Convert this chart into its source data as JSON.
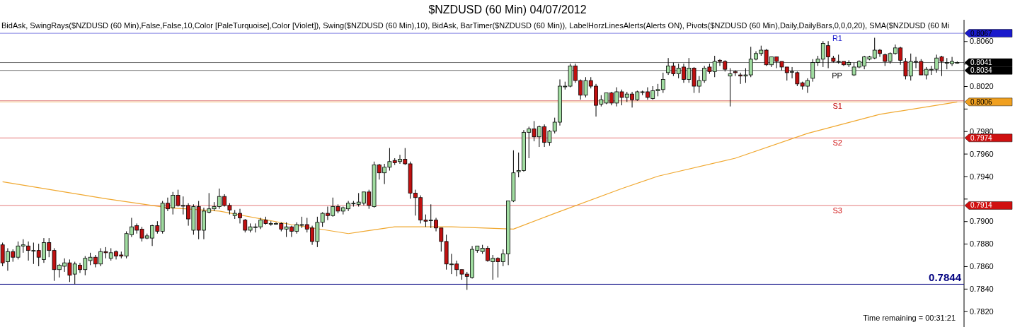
{
  "chart_data": {
    "type": "candlestick",
    "title": "$NZDUSD (60 Min)  04/07/2012",
    "subtitle": "BidAsk, SwingRays($NZDUSD (60 Min),False,False,10,Color [PaleTurquoise],Color [Violet]), Swing($NZDUSD (60 Min),10), BidAsk, BarTimer($NZDUSD (60 Min)), LabelHorzLinesAlerts(Alerts ON), Pivots($NZDUSD (60 Min),Daily,DailyBars,0,0,0,20), SMA($NZDUSD (60 Mi",
    "categories": [
      null,
      null,
      null,
      null,
      null,
      null,
      null,
      null,
      null,
      null,
      null,
      null,
      null,
      null,
      null,
      null,
      null,
      null,
      null,
      null,
      null,
      null,
      null,
      null,
      null,
      null,
      null,
      null,
      null,
      null,
      null,
      null,
      null,
      null,
      null,
      null,
      null,
      null,
      null,
      null,
      null,
      null,
      null,
      null,
      null,
      null,
      null,
      null,
      null,
      null,
      null,
      null,
      null,
      null,
      null,
      null,
      null,
      null,
      null,
      null,
      null,
      null,
      null,
      null,
      null,
      null,
      null,
      null,
      null,
      null,
      null,
      null,
      null,
      null,
      null,
      null,
      null,
      null,
      null,
      null,
      null,
      null,
      null,
      null,
      null,
      null,
      null,
      null,
      null,
      null,
      null,
      null,
      null,
      null,
      null,
      null,
      null,
      null,
      null,
      null,
      null,
      null,
      null,
      null,
      null,
      null,
      null,
      null,
      null,
      null,
      null,
      null,
      null,
      null,
      null,
      null,
      null,
      null,
      null,
      null,
      null,
      null,
      null,
      null,
      null,
      null,
      null,
      null,
      null,
      null,
      null,
      null,
      null,
      null,
      null,
      null,
      null,
      null,
      null,
      null,
      null,
      null,
      null,
      null,
      null,
      null,
      null,
      null,
      null,
      null,
      null,
      null,
      null,
      null,
      null,
      null,
      null,
      null,
      null,
      null,
      null,
      null,
      null,
      null,
      null,
      null,
      null,
      null,
      null,
      null,
      null,
      null,
      null,
      null,
      null,
      null,
      null,
      null,
      null,
      null,
      null,
      null,
      null,
      null,
      null,
      null
    ],
    "ohlc": [
      [
        0.7879,
        0.7881,
        0.786,
        0.7863
      ],
      [
        0.7864,
        0.7876,
        0.7856,
        0.7873
      ],
      [
        0.7873,
        0.7875,
        0.7864,
        0.7868
      ],
      [
        0.7868,
        0.7882,
        0.7866,
        0.7878
      ],
      [
        0.7878,
        0.7884,
        0.7872,
        0.7879
      ],
      [
        0.7878,
        0.7882,
        0.7865,
        0.7874
      ],
      [
        0.7874,
        0.7881,
        0.7862,
        0.7874
      ],
      [
        0.7874,
        0.788,
        0.786,
        0.7868
      ],
      [
        0.7866,
        0.7885,
        0.7863,
        0.7881
      ],
      [
        0.7881,
        0.7885,
        0.7868,
        0.7874
      ],
      [
        0.7874,
        0.7876,
        0.7847,
        0.7857
      ],
      [
        0.7857,
        0.7862,
        0.785,
        0.7861
      ],
      [
        0.786,
        0.7867,
        0.7855,
        0.7863
      ],
      [
        0.7863,
        0.7866,
        0.7846,
        0.7852
      ],
      [
        0.7853,
        0.7864,
        0.7844,
        0.7862
      ],
      [
        0.7861,
        0.7863,
        0.7854,
        0.7857
      ],
      [
        0.7857,
        0.7869,
        0.7852,
        0.7867
      ],
      [
        0.7865,
        0.7872,
        0.7861,
        0.7868
      ],
      [
        0.7868,
        0.787,
        0.7859,
        0.7862
      ],
      [
        0.7862,
        0.7876,
        0.786,
        0.7873
      ],
      [
        0.7873,
        0.7877,
        0.7867,
        0.7872
      ],
      [
        0.7867,
        0.7876,
        0.7865,
        0.7872
      ],
      [
        0.7873,
        0.7874,
        0.7866,
        0.7869
      ],
      [
        0.787,
        0.7873,
        0.7867,
        0.7869
      ],
      [
        0.7869,
        0.7891,
        0.7867,
        0.7889
      ],
      [
        0.7888,
        0.7903,
        0.7886,
        0.7895
      ],
      [
        0.7896,
        0.7898,
        0.7889,
        0.7892
      ],
      [
        0.7893,
        0.7895,
        0.7882,
        0.7885
      ],
      [
        0.7885,
        0.7889,
        0.7884,
        0.7887
      ],
      [
        0.7885,
        0.7897,
        0.7878,
        0.7896
      ],
      [
        0.7896,
        0.79,
        0.7889,
        0.7891
      ],
      [
        0.7891,
        0.7918,
        0.7889,
        0.7916
      ],
      [
        0.7916,
        0.7921,
        0.7909,
        0.7911
      ],
      [
        0.7912,
        0.7926,
        0.7906,
        0.7923
      ],
      [
        0.7923,
        0.7928,
        0.7913,
        0.7914
      ],
      [
        0.7914,
        0.7922,
        0.7906,
        0.7914
      ],
      [
        0.7914,
        0.7916,
        0.7896,
        0.7902
      ],
      [
        0.7892,
        0.7915,
        0.7888,
        0.7913
      ],
      [
        0.7913,
        0.7918,
        0.7884,
        0.7892
      ],
      [
        0.7892,
        0.7912,
        0.7884,
        0.7909
      ],
      [
        0.7908,
        0.7925,
        0.7907,
        0.7911
      ],
      [
        0.7911,
        0.7917,
        0.7909,
        0.7913
      ],
      [
        0.7913,
        0.7929,
        0.7911,
        0.7922
      ],
      [
        0.7922,
        0.7924,
        0.7913,
        0.7914
      ],
      [
        0.7914,
        0.7916,
        0.7906,
        0.791
      ],
      [
        0.7905,
        0.791,
        0.7902,
        0.7907
      ],
      [
        0.7907,
        0.7911,
        0.7898,
        0.7903
      ],
      [
        0.7901,
        0.7902,
        0.789,
        0.7892
      ],
      [
        0.7892,
        0.7898,
        0.789,
        0.7895
      ],
      [
        0.7895,
        0.7898,
        0.789,
        0.7895
      ],
      [
        0.7895,
        0.7903,
        0.7893,
        0.7901
      ],
      [
        0.7901,
        0.7904,
        0.7897,
        0.7898
      ],
      [
        0.7898,
        0.79,
        0.7896,
        0.7898
      ],
      [
        0.7898,
        0.7899,
        0.7897,
        0.7898
      ],
      [
        0.7898,
        0.7899,
        0.7891,
        0.7893
      ],
      [
        0.7893,
        0.7899,
        0.7886,
        0.7895
      ],
      [
        0.7895,
        0.7896,
        0.7886,
        0.7891
      ],
      [
        0.7891,
        0.7899,
        0.7889,
        0.7897
      ],
      [
        0.7897,
        0.7904,
        0.7894,
        0.7897
      ],
      [
        0.7897,
        0.7903,
        0.789,
        0.7893
      ],
      [
        0.7894,
        0.7896,
        0.7879,
        0.7882
      ],
      [
        0.7882,
        0.7904,
        0.7877,
        0.7899
      ],
      [
        0.7899,
        0.7908,
        0.7895,
        0.7907
      ],
      [
        0.7907,
        0.7913,
        0.7901,
        0.7905
      ],
      [
        0.7905,
        0.7921,
        0.7904,
        0.7913
      ],
      [
        0.7913,
        0.7915,
        0.7907,
        0.7909
      ],
      [
        0.7909,
        0.7913,
        0.7906,
        0.7912
      ],
      [
        0.7911,
        0.7918,
        0.7909,
        0.7916
      ],
      [
        0.7916,
        0.7918,
        0.7913,
        0.7916
      ],
      [
        0.7915,
        0.7925,
        0.7913,
        0.7917
      ],
      [
        0.7916,
        0.7926,
        0.7914,
        0.7926
      ],
      [
        0.7926,
        0.7928,
        0.7911,
        0.7914
      ],
      [
        0.7913,
        0.7953,
        0.7912,
        0.795
      ],
      [
        0.795,
        0.7951,
        0.7937,
        0.7943
      ],
      [
        0.7943,
        0.7951,
        0.7933,
        0.7948
      ],
      [
        0.7948,
        0.7965,
        0.7945,
        0.7953
      ],
      [
        0.7954,
        0.7956,
        0.795,
        0.7952
      ],
      [
        0.7953,
        0.7959,
        0.7951,
        0.7955
      ],
      [
        0.7955,
        0.7965,
        0.795,
        0.7951
      ],
      [
        0.7951,
        0.7953,
        0.792,
        0.7925
      ],
      [
        0.7925,
        0.7928,
        0.7905,
        0.7921
      ],
      [
        0.7921,
        0.7923,
        0.7898,
        0.7901
      ],
      [
        0.7901,
        0.7906,
        0.7895,
        0.79
      ],
      [
        0.7901,
        0.7915,
        0.7894,
        0.7901
      ],
      [
        0.7901,
        0.7903,
        0.7891,
        0.7894
      ],
      [
        0.7894,
        0.7894,
        0.7873,
        0.7882
      ],
      [
        0.7882,
        0.7888,
        0.7857,
        0.7862
      ],
      [
        0.7862,
        0.7871,
        0.7853,
        0.7862
      ],
      [
        0.7862,
        0.7865,
        0.7851,
        0.7857
      ],
      [
        0.7857,
        0.7857,
        0.7848,
        0.7853
      ],
      [
        0.7853,
        0.7855,
        0.7839,
        0.7851
      ],
      [
        0.785,
        0.7878,
        0.7849,
        0.7875
      ],
      [
        0.7874,
        0.7878,
        0.7872,
        0.7878
      ],
      [
        0.7873,
        0.7879,
        0.7871,
        0.7876
      ],
      [
        0.7876,
        0.7878,
        0.7864,
        0.7865
      ],
      [
        0.7864,
        0.787,
        0.7848,
        0.7867
      ],
      [
        0.7867,
        0.7868,
        0.785,
        0.7864
      ],
      [
        0.7864,
        0.7875,
        0.786,
        0.7871
      ],
      [
        0.7871,
        0.7918,
        0.7861,
        0.7918
      ],
      [
        0.7918,
        0.7963,
        0.7917,
        0.7943
      ],
      [
        0.7944,
        0.7961,
        0.7939,
        0.7945
      ],
      [
        0.7945,
        0.7981,
        0.7944,
        0.7979
      ],
      [
        0.7979,
        0.7984,
        0.7956,
        0.7982
      ],
      [
        0.7982,
        0.7989,
        0.7971,
        0.7975
      ],
      [
        0.7975,
        0.7985,
        0.7966,
        0.7984
      ],
      [
        0.7984,
        0.7986,
        0.7966,
        0.797
      ],
      [
        0.797,
        0.7981,
        0.7967,
        0.798
      ],
      [
        0.798,
        0.7992,
        0.7978,
        0.7988
      ],
      [
        0.7988,
        0.8026,
        0.7985,
        0.802
      ],
      [
        0.802,
        0.8024,
        0.8017,
        0.802
      ],
      [
        0.802,
        0.804,
        0.8019,
        0.8038
      ],
      [
        0.8038,
        0.804,
        0.8023,
        0.8025
      ],
      [
        0.8025,
        0.8026,
        0.8008,
        0.8012
      ],
      [
        0.8012,
        0.8028,
        0.801,
        0.8025
      ],
      [
        0.8025,
        0.8028,
        0.8018,
        0.802
      ],
      [
        0.802,
        0.8022,
        0.7993,
        0.8003
      ],
      [
        0.8004,
        0.8012,
        0.8002,
        0.8008
      ],
      [
        0.8005,
        0.8014,
        0.8004,
        0.8014
      ],
      [
        0.8014,
        0.8015,
        0.8003,
        0.8005
      ],
      [
        0.8005,
        0.8019,
        0.8002,
        0.8015
      ],
      [
        0.8015,
        0.8017,
        0.8003,
        0.801
      ],
      [
        0.801,
        0.8015,
        0.8006,
        0.8013
      ],
      [
        0.8013,
        0.8015,
        0.8001,
        0.8008
      ],
      [
        0.8008,
        0.8016,
        0.8007,
        0.8015
      ],
      [
        0.8015,
        0.8016,
        0.8012,
        0.8015
      ],
      [
        0.8015,
        0.8019,
        0.8008,
        0.801
      ],
      [
        0.8009,
        0.802,
        0.8008,
        0.8016
      ],
      [
        0.8016,
        0.8022,
        0.8011,
        0.8017
      ],
      [
        0.8017,
        0.8032,
        0.8014,
        0.8026
      ],
      [
        0.8032,
        0.8045,
        0.803,
        0.8038
      ],
      [
        0.8038,
        0.8041,
        0.8029,
        0.8031
      ],
      [
        0.8031,
        0.804,
        0.8027,
        0.8036
      ],
      [
        0.8037,
        0.804,
        0.8023,
        0.8026
      ],
      [
        0.8026,
        0.8045,
        0.8023,
        0.8036
      ],
      [
        0.8036,
        0.8037,
        0.8014,
        0.802
      ],
      [
        0.802,
        0.8029,
        0.8014,
        0.8025
      ],
      [
        0.8025,
        0.8038,
        0.8023,
        0.8036
      ],
      [
        0.8037,
        0.804,
        0.8031,
        0.8033
      ],
      [
        0.8033,
        0.8047,
        0.8028,
        0.8042
      ],
      [
        0.8043,
        0.8044,
        0.8038,
        0.8042
      ],
      [
        0.8042,
        0.8043,
        0.8033,
        0.8035
      ],
      [
        0.8029,
        0.8036,
        0.8002,
        0.8031
      ],
      [
        0.8033,
        0.8034,
        0.8029,
        0.8032
      ],
      [
        0.803,
        0.8032,
        0.8022,
        0.8029
      ],
      [
        0.8029,
        0.8036,
        0.8023,
        0.803
      ],
      [
        0.803,
        0.8055,
        0.8028,
        0.8044
      ],
      [
        0.8044,
        0.8051,
        0.8043,
        0.8049
      ],
      [
        0.8049,
        0.8056,
        0.8047,
        0.8052
      ],
      [
        0.8052,
        0.8053,
        0.8038,
        0.8039
      ],
      [
        0.8039,
        0.8046,
        0.8037,
        0.8046
      ],
      [
        0.8046,
        0.8046,
        0.8036,
        0.8042
      ],
      [
        0.8042,
        0.8042,
        0.8034,
        0.8037
      ],
      [
        0.8037,
        0.8037,
        0.8025,
        0.8032
      ],
      [
        0.8033,
        0.8037,
        0.8027,
        0.8033
      ],
      [
        0.8032,
        0.8033,
        0.802,
        0.8022
      ],
      [
        0.8023,
        0.8024,
        0.8017,
        0.802
      ],
      [
        0.802,
        0.8027,
        0.8014,
        0.8025
      ],
      [
        0.8027,
        0.8044,
        0.8024,
        0.8041
      ],
      [
        0.8041,
        0.8047,
        0.8038,
        0.8044
      ],
      [
        0.8044,
        0.806,
        0.8037,
        0.8058
      ],
      [
        0.8056,
        0.806,
        0.8036,
        0.8046
      ],
      [
        0.8045,
        0.8047,
        0.8041,
        0.8042
      ],
      [
        0.8042,
        0.8048,
        0.804,
        0.8042
      ],
      [
        0.8042,
        0.8042,
        0.8038,
        0.8039
      ],
      [
        0.8039,
        0.8043,
        0.8037,
        0.8041
      ],
      [
        0.803,
        0.8041,
        0.8029,
        0.8037
      ],
      [
        0.8037,
        0.8043,
        0.8036,
        0.8042
      ],
      [
        0.8038,
        0.8047,
        0.8035,
        0.8046
      ],
      [
        0.8044,
        0.8047,
        0.8043,
        0.8046
      ],
      [
        0.8045,
        0.8063,
        0.8044,
        0.8052
      ],
      [
        0.8052,
        0.8053,
        0.8046,
        0.8049
      ],
      [
        0.8048,
        0.8049,
        0.8038,
        0.8042
      ],
      [
        0.8042,
        0.805,
        0.804,
        0.8049
      ],
      [
        0.8049,
        0.8057,
        0.8048,
        0.8054
      ],
      [
        0.8054,
        0.8055,
        0.8039,
        0.8043
      ],
      [
        0.8042,
        0.8045,
        0.8026,
        0.8029
      ],
      [
        0.8029,
        0.8049,
        0.8025,
        0.8042
      ],
      [
        0.8042,
        0.8046,
        0.8036,
        0.8042
      ],
      [
        0.8042,
        0.8044,
        0.803,
        0.803
      ],
      [
        0.803,
        0.8037,
        0.8026,
        0.8035
      ],
      [
        0.8035,
        0.8038,
        0.803,
        0.8035
      ],
      [
        0.8035,
        0.8048,
        0.8032,
        0.8045
      ],
      [
        0.8046,
        0.8047,
        0.8029,
        0.8042
      ],
      [
        0.8041,
        0.8045,
        0.8035,
        0.8041
      ],
      [
        0.804,
        0.8046,
        0.8038,
        0.8042
      ],
      [
        0.8041,
        0.8042,
        0.804,
        0.8041
      ]
    ],
    "series": [
      {
        "type": "line",
        "color": "#f0a830",
        "values": [
          0.7935,
          null,
          null,
          null,
          null,
          null,
          null,
          null,
          null,
          null,
          null,
          null,
          null,
          null,
          null,
          null,
          null,
          null,
          null,
          null,
          0.792,
          null,
          null,
          null,
          null,
          null,
          null,
          null,
          null,
          null,
          null,
          null,
          0.7912,
          null,
          null,
          null,
          null,
          null,
          null,
          null,
          null,
          null,
          0.7909,
          null,
          null,
          null,
          null,
          null,
          null,
          null,
          null,
          null,
          null,
          null,
          null,
          null,
          0.7897,
          null,
          null,
          null,
          null,
          null,
          null,
          null,
          null,
          null,
          null,
          0.7889,
          null,
          null,
          null,
          null,
          null,
          null,
          null,
          null,
          0.7895,
          null,
          null,
          null,
          null,
          null,
          null,
          null,
          null,
          null,
          null,
          0.7895,
          null,
          null,
          null,
          null,
          null,
          null,
          null,
          null,
          null,
          null,
          null,
          0.7893,
          null,
          null,
          null,
          null,
          null,
          null,
          null,
          0.7907,
          null,
          null,
          null,
          null,
          null,
          null,
          null,
          null,
          null,
          null,
          null,
          null,
          0.7929,
          null,
          null,
          null,
          null,
          null,
          null,
          0.794,
          null,
          null,
          null,
          null,
          null,
          null,
          null,
          null,
          null,
          null,
          null,
          null,
          null,
          null,
          0.7956,
          null,
          null,
          null,
          null,
          null,
          null,
          null,
          null,
          null,
          null,
          null,
          null,
          null,
          0.7978,
          null,
          null,
          null,
          null,
          null,
          null,
          null,
          null,
          null,
          null,
          null,
          null,
          null,
          0.7995,
          null,
          null,
          null,
          null,
          null,
          null,
          null,
          null,
          null,
          null,
          null,
          null,
          null,
          null,
          0.8006
        ]
      }
    ],
    "ylim": [
      0.7806,
      0.8079
    ],
    "yticks": [
      {
        "value": 0.782,
        "label": "0.7820"
      },
      {
        "value": 0.784,
        "label": "0.7840"
      },
      {
        "value": 0.786,
        "label": "0.7860"
      },
      {
        "value": 0.788,
        "label": "0.7880"
      },
      {
        "value": 0.79,
        "label": "0.7900"
      },
      {
        "value": 0.792,
        "label": null
      },
      {
        "value": 0.794,
        "label": "0.7940"
      },
      {
        "value": 0.796,
        "label": "0.7960"
      },
      {
        "value": 0.798,
        "label": "0.7980"
      },
      {
        "value": 0.8,
        "label": null
      },
      {
        "value": 0.802,
        "label": "0.8020"
      },
      {
        "value": 0.804,
        "label": null
      },
      {
        "value": 0.806,
        "label": "0.8060"
      }
    ],
    "tick_labels": "y",
    "ref_lines": [
      {
        "axis": "y",
        "value": 0.7844,
        "label": "0.7844",
        "color": "#000080"
      },
      {
        "axis": "y",
        "value": 0.8007,
        "color": "#c00000"
      },
      {
        "axis": "y",
        "value": 0.8067,
        "label": "0.8067",
        "color": "#1a1acc"
      },
      {
        "axis": "y",
        "value": 0.8041,
        "label": "0.8041",
        "color": "#000000"
      },
      {
        "axis": "y",
        "value": 0.8034,
        "label": "0.8034",
        "color": "#000000"
      },
      {
        "axis": "y",
        "value": 0.8006,
        "label": "0.8006",
        "color": "#f0a020"
      },
      {
        "axis": "y",
        "value": 0.7974,
        "label": "0.7974",
        "color": "#d01010"
      },
      {
        "axis": "y",
        "value": 0.7914,
        "label": "0.7914",
        "color": "#d01010"
      }
    ],
    "annotations": [
      {
        "text": "R1",
        "y": 0.8067
      },
      {
        "text": "PP",
        "y": 0.8034
      },
      {
        "text": "S1",
        "y": 0.8007
      },
      {
        "text": "S2",
        "y": 0.7974
      },
      {
        "text": "S3",
        "y": 0.7914
      },
      "Time remaining = 00:31:21"
    ]
  }
}
